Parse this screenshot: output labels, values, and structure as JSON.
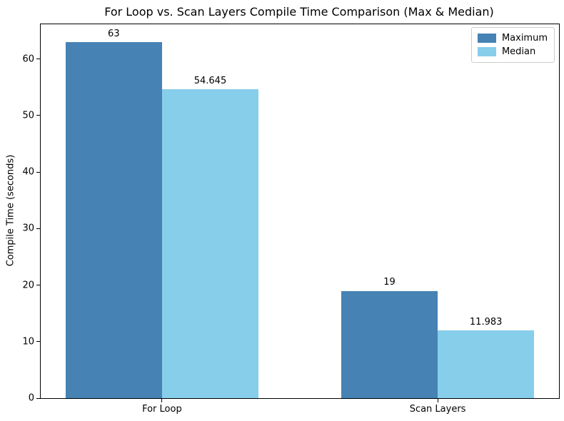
{
  "window": {
    "background": "#ffffff"
  },
  "chart_data": {
    "type": "bar",
    "title": "For Loop vs. Scan Layers Compile Time Comparison (Max & Median)",
    "xlabel": "",
    "ylabel": "Compile Time (seconds)",
    "categories": [
      "For Loop",
      "Scan Layers"
    ],
    "series": [
      {
        "name": "Maximum",
        "color": "#4682b4",
        "values": [
          63,
          19
        ],
        "labels": [
          "63",
          "19"
        ]
      },
      {
        "name": "Median",
        "color": "#87ceeb",
        "values": [
          54.645,
          11.983
        ],
        "labels": [
          "54.645",
          "11.983"
        ]
      }
    ],
    "bar_width": 0.35,
    "xlim": [
      -0.44,
      1.44
    ],
    "ylim": [
      0,
      66.15
    ],
    "yticks": [
      0,
      10,
      20,
      30,
      40,
      50,
      60
    ],
    "grid": false,
    "legend": {
      "position": "upper right",
      "entries": [
        "Maximum",
        "Median"
      ]
    },
    "colors": {
      "text": "#000000",
      "spines": "#000000",
      "legend_border": "#cccccc",
      "plot_background": "#ffffff"
    }
  }
}
